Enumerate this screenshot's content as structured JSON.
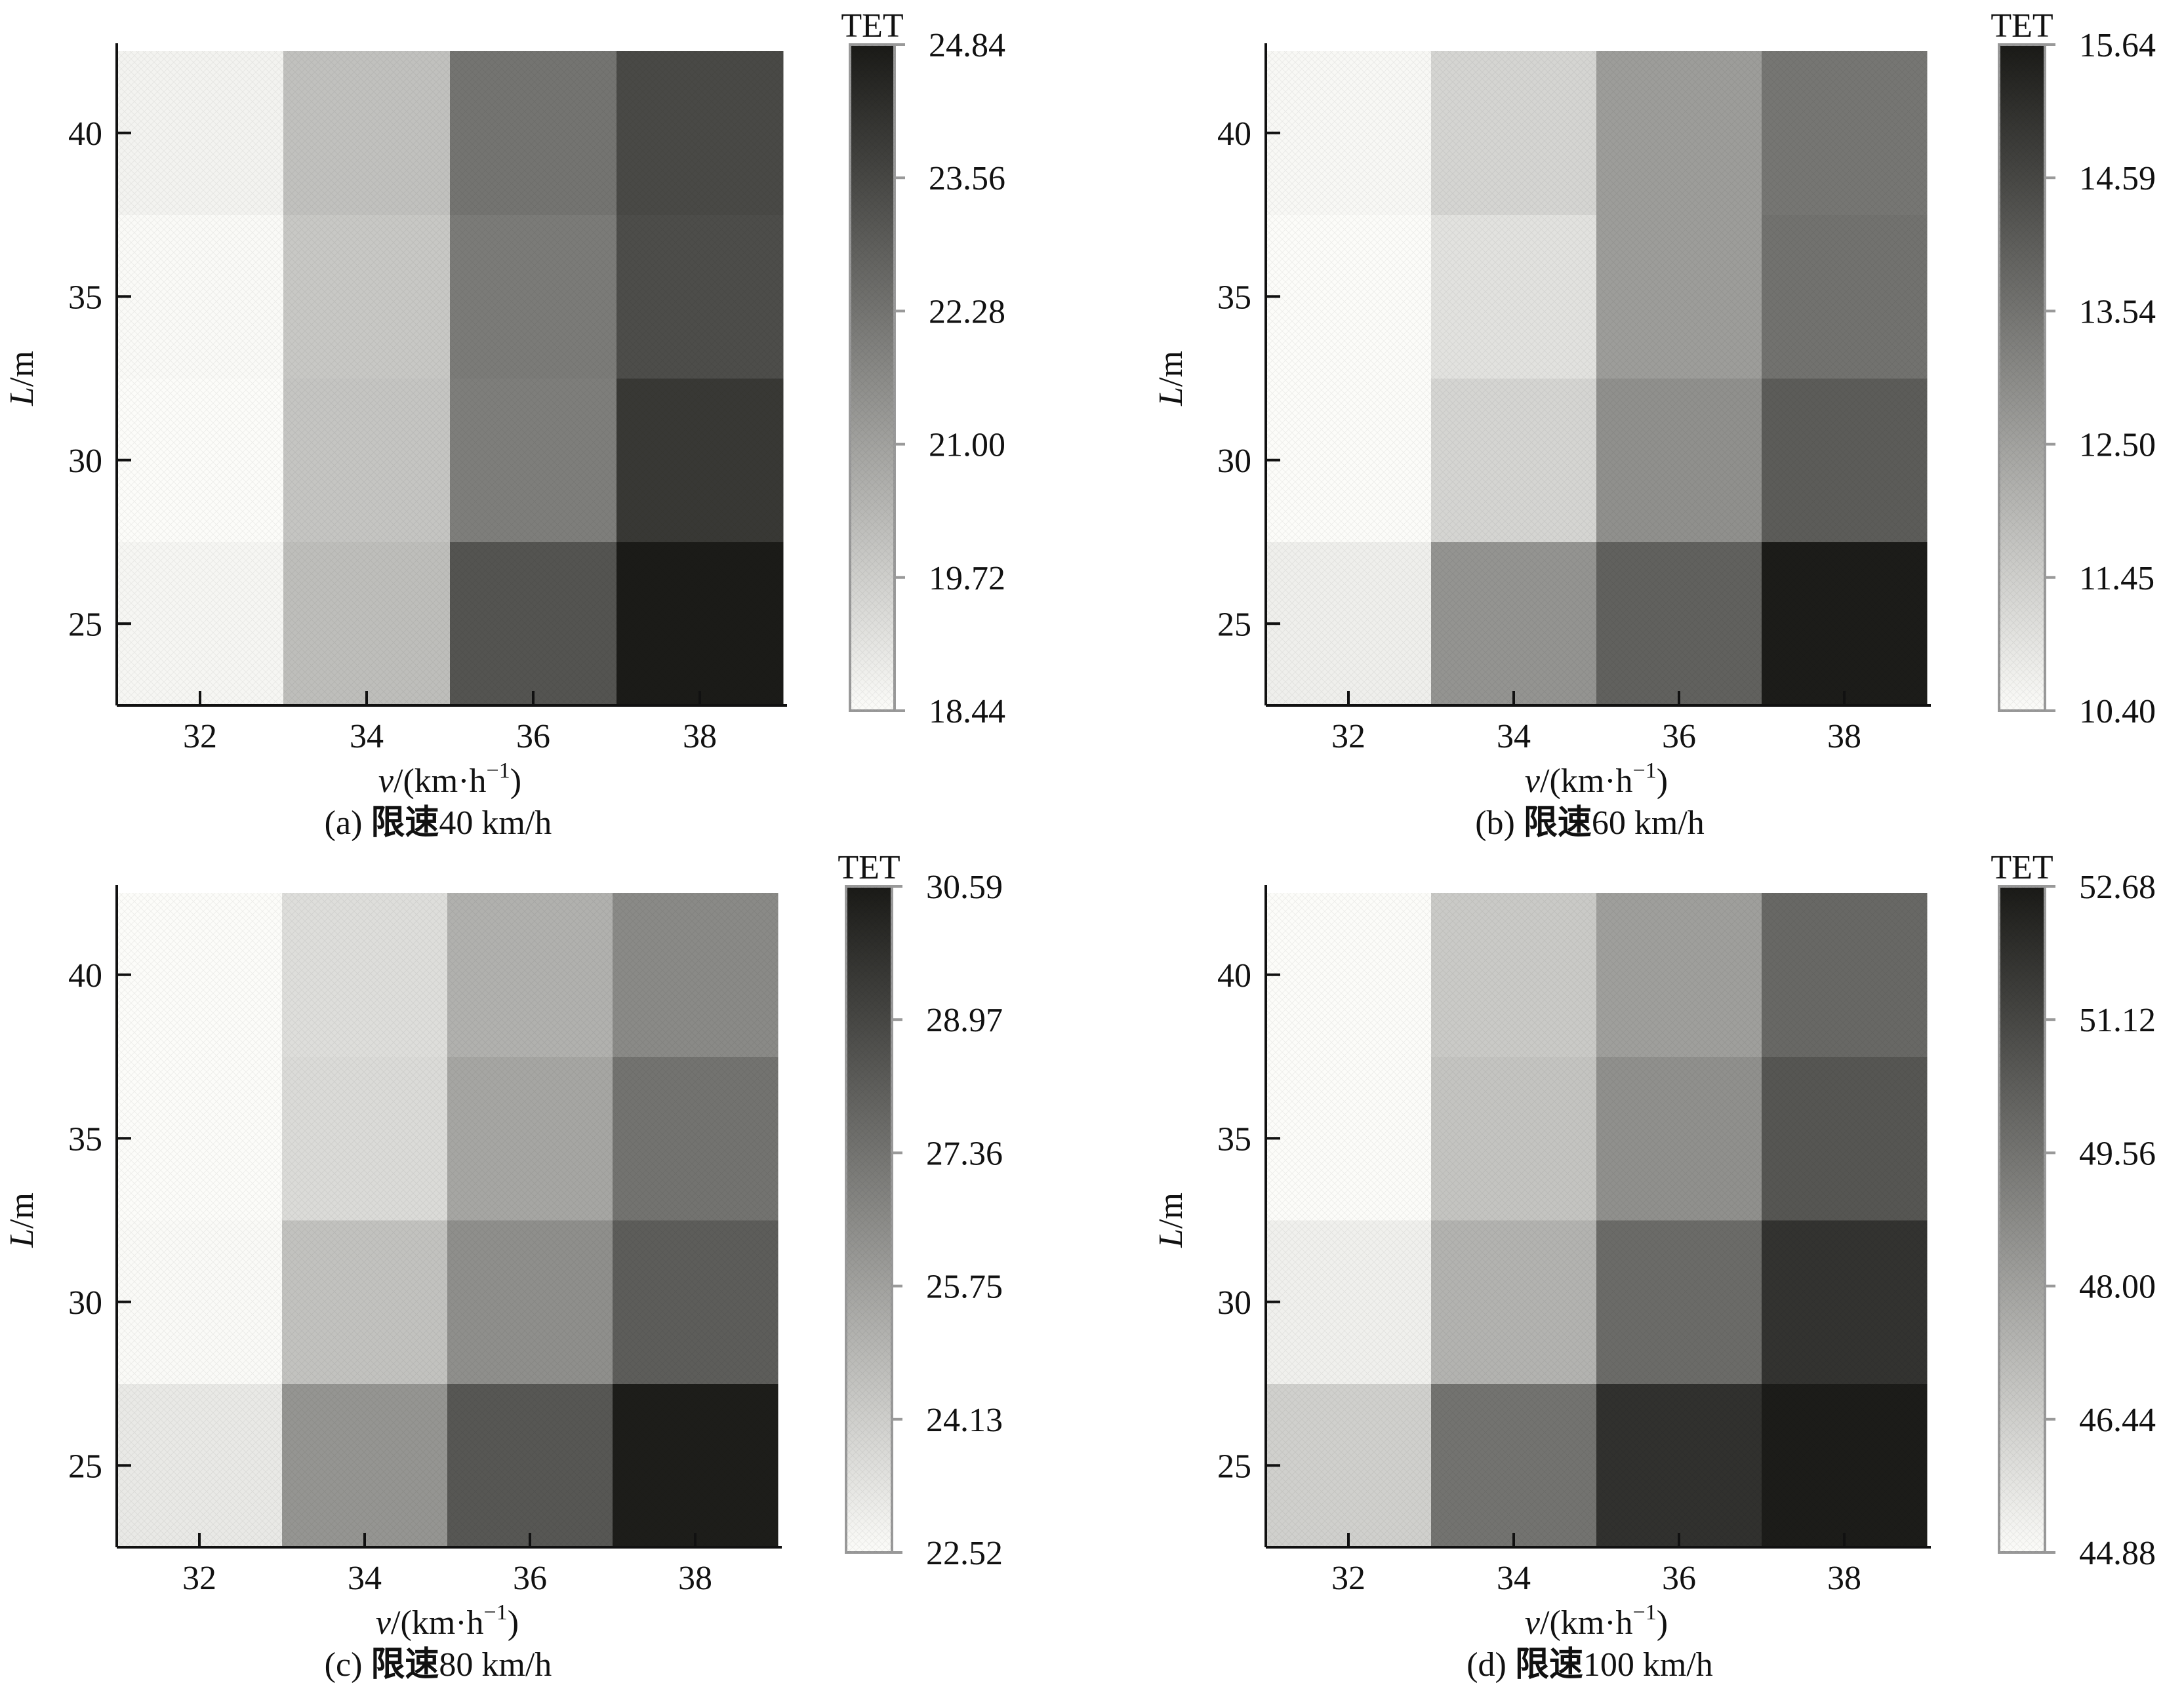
{
  "chart_data": [
    {
      "id": "a",
      "type": "heatmap",
      "caption_prefix": "(a) ",
      "caption_cjk": "限速",
      "caption_suffix": "40 km/h",
      "x_categories": [
        "32",
        "34",
        "36",
        "38"
      ],
      "y_categories": [
        "25",
        "30",
        "35",
        "40"
      ],
      "xlabel_var": "v",
      "xlabel_unit": "/(km·h",
      "xlabel_exp": "−1",
      "xlabel_close": ")",
      "ylabel_var": "L",
      "ylabel_unit": "/m",
      "colorbar_title": "TET",
      "colorbar_ticks": [
        "18.44",
        "19.72",
        "21.00",
        "22.28",
        "23.56",
        "24.84"
      ],
      "vmin": 18.44,
      "vmax": 24.84,
      "values": [
        [
          18.6,
          20.2,
          23.2,
          24.8
        ],
        [
          18.44,
          20.0,
          22.0,
          24.0
        ],
        [
          18.5,
          19.9,
          22.1,
          23.4
        ],
        [
          18.7,
          20.1,
          22.3,
          23.5
        ]
      ]
    },
    {
      "id": "b",
      "type": "heatmap",
      "caption_prefix": "(b) ",
      "caption_cjk": "限速",
      "caption_suffix": "60 km/h",
      "x_categories": [
        "32",
        "34",
        "36",
        "38"
      ],
      "y_categories": [
        "25",
        "30",
        "35",
        "40"
      ],
      "xlabel_var": "v",
      "xlabel_unit": "/(km·h",
      "xlabel_exp": "−1",
      "xlabel_close": ")",
      "ylabel_var": "L",
      "ylabel_unit": "/m",
      "colorbar_title": "TET",
      "colorbar_ticks": [
        "10.40",
        "11.45",
        "12.50",
        "13.54",
        "14.59",
        "15.64"
      ],
      "vmin": 10.4,
      "vmax": 15.64,
      "values": [
        [
          10.7,
          12.8,
          14.0,
          15.6
        ],
        [
          10.4,
          11.3,
          12.9,
          14.1
        ],
        [
          10.4,
          11.0,
          12.6,
          13.6
        ],
        [
          10.5,
          11.3,
          12.6,
          13.5
        ]
      ]
    },
    {
      "id": "c",
      "type": "heatmap",
      "caption_prefix": "(c) ",
      "caption_cjk": "限速",
      "caption_suffix": "80 km/h",
      "x_categories": [
        "32",
        "34",
        "36",
        "38"
      ],
      "y_categories": [
        "25",
        "30",
        "35",
        "40"
      ],
      "xlabel_var": "v",
      "xlabel_unit": "/(km·h",
      "xlabel_exp": "−1",
      "xlabel_close": ")",
      "ylabel_var": "L",
      "ylabel_unit": "/m",
      "colorbar_title": "TET",
      "colorbar_ticks": [
        "22.52",
        "24.13",
        "25.75",
        "27.36",
        "28.97",
        "30.59"
      ],
      "vmin": 22.52,
      "vmax": 30.59,
      "values": [
        [
          23.2,
          26.2,
          28.4,
          30.5
        ],
        [
          22.6,
          24.6,
          26.4,
          28.2
        ],
        [
          22.52,
          23.7,
          25.6,
          27.4
        ],
        [
          22.52,
          23.6,
          25.2,
          26.6
        ]
      ]
    },
    {
      "id": "d",
      "type": "heatmap",
      "caption_prefix": "(d) ",
      "caption_cjk": "限速",
      "caption_suffix": "100 km/h",
      "x_categories": [
        "32",
        "34",
        "36",
        "38"
      ],
      "y_categories": [
        "25",
        "30",
        "35",
        "40"
      ],
      "xlabel_var": "v",
      "xlabel_unit": "/(km·h",
      "xlabel_exp": "−1",
      "xlabel_close": ")",
      "ylabel_var": "L",
      "ylabel_unit": "/m",
      "colorbar_title": "TET",
      "colorbar_ticks": [
        "44.88",
        "46.44",
        "48.00",
        "49.56",
        "51.12",
        "52.68"
      ],
      "vmin": 44.88,
      "vmax": 52.68,
      "values": [
        [
          46.4,
          49.6,
          51.9,
          52.6
        ],
        [
          45.3,
          47.4,
          49.9,
          51.8
        ],
        [
          44.88,
          46.8,
          48.6,
          50.6
        ],
        [
          44.88,
          46.6,
          48.1,
          50.0
        ]
      ]
    }
  ]
}
